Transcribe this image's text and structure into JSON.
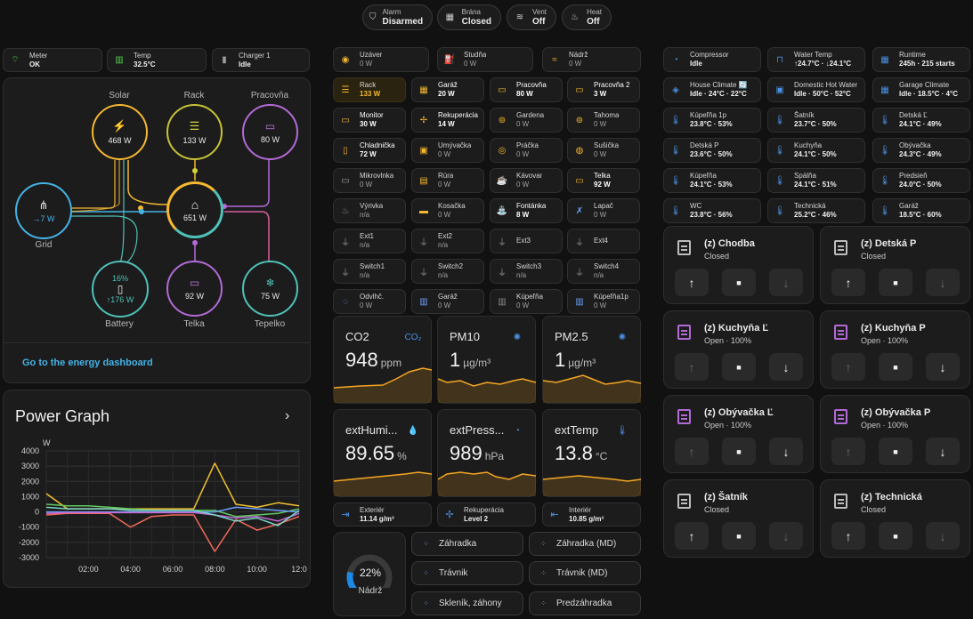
{
  "header_chips": [
    {
      "label": "Alarm",
      "value": "Disarmed",
      "icon": "shield-off-icon"
    },
    {
      "label": "Brána",
      "value": "Closed",
      "icon": "garage-icon"
    },
    {
      "label": "Vent",
      "value": "Off",
      "icon": "vent-icon"
    },
    {
      "label": "Heat",
      "value": "Off",
      "icon": "heat-icon"
    }
  ],
  "status_chips": [
    {
      "label": "Meter",
      "value": "OK",
      "icon": "wifi-icon"
    },
    {
      "label": "Temp",
      "value": "32.5°C",
      "icon": "meter-icon"
    },
    {
      "label": "Charger 1",
      "value": "Idle",
      "icon": "charger-icon"
    }
  ],
  "energy": {
    "solar": {
      "label": "Solar",
      "value": "468 W"
    },
    "rack": {
      "label": "Rack",
      "value": "133 W"
    },
    "pracovna": {
      "label": "Pracovňa",
      "value": "80 W"
    },
    "grid": {
      "label": "Grid",
      "value": "→7 W"
    },
    "home": {
      "value": "651 W"
    },
    "battery": {
      "label": "Battery",
      "percent": "16%",
      "value": "↑176 W"
    },
    "telka": {
      "label": "Telka",
      "value": "92 W"
    },
    "tepelko": {
      "label": "Tepelko",
      "value": "75 W"
    },
    "link": "Go to the energy dashboard"
  },
  "power_graph": {
    "title": "Power Graph",
    "ylabel": "W",
    "yticks": [
      "4000",
      "3000",
      "2000",
      "1000",
      "0",
      "-1000",
      "-2000",
      "-3000"
    ],
    "xticks": [
      "02:00",
      "04:00",
      "06:00",
      "08:00",
      "10:00",
      "12:0"
    ]
  },
  "chart_data": {
    "type": "line",
    "title": "Power Graph",
    "ylabel": "W",
    "xlabel": "",
    "ylim": [
      -3000,
      4000
    ],
    "x": [
      "00:00",
      "01:00",
      "02:00",
      "03:00",
      "04:00",
      "05:00",
      "06:00",
      "07:00",
      "08:00",
      "09:00",
      "10:00",
      "11:00",
      "12:00"
    ],
    "series": [
      {
        "name": "",
        "color": "#f2c230",
        "values": [
          1200,
          200,
          200,
          200,
          200,
          200,
          200,
          200,
          3200,
          500,
          300,
          600,
          400
        ]
      },
      {
        "name": "",
        "color": "#5fc95f",
        "values": [
          500,
          400,
          400,
          300,
          200,
          100,
          100,
          100,
          100,
          -300,
          -200,
          -100,
          200
        ]
      },
      {
        "name": "",
        "color": "#f06a5a",
        "values": [
          -200,
          -100,
          -100,
          -100,
          -1000,
          -300,
          -200,
          -200,
          -2600,
          -500,
          -1200,
          -800,
          -300
        ]
      },
      {
        "name": "",
        "color": "#6aa0ff",
        "values": [
          0,
          0,
          0,
          0,
          0,
          0,
          0,
          0,
          0,
          300,
          200,
          100,
          0
        ]
      },
      {
        "name": "",
        "color": "#c86ad6",
        "values": [
          -100,
          -50,
          -50,
          -50,
          -50,
          -50,
          -50,
          -50,
          -200,
          -400,
          -300,
          -600,
          -100
        ]
      },
      {
        "name": "",
        "color": "#7ad3c8",
        "values": [
          300,
          200,
          200,
          200,
          100,
          100,
          100,
          100,
          -200,
          -600,
          -400,
          -900,
          100
        ]
      }
    ]
  },
  "power_tiles": [
    {
      "name": "Uzáver",
      "value": "0 W",
      "icon": "valve-icon",
      "color": "#f5b830",
      "style": "normal"
    },
    {
      "name": "Studňa",
      "value": "0 W",
      "icon": "pump-icon",
      "color": "#f5b830",
      "style": "normal"
    },
    {
      "name": "Nádrž",
      "value": "0 W",
      "icon": "tank-icon",
      "color": "#f5b830",
      "style": "normal"
    },
    {
      "name": "Rack",
      "value": "133 W",
      "icon": "server-icon",
      "color": "#f5b830",
      "style": "on"
    },
    {
      "name": "Garáž",
      "value": "20 W",
      "icon": "garage-power-icon",
      "color": "#f5b830",
      "style": "b"
    },
    {
      "name": "Pracovňa",
      "value": "80 W",
      "icon": "laptop-icon",
      "color": "#f5b830",
      "style": "b"
    },
    {
      "name": "Pracovňa 2",
      "value": "3 W",
      "icon": "laptop-icon",
      "color": "#f5b830",
      "style": "b"
    },
    {
      "name": "Monitor",
      "value": "30 W",
      "icon": "monitor-icon",
      "color": "#f5b830",
      "style": "b"
    },
    {
      "name": "Rekuperácia",
      "value": "14 W",
      "icon": "fan-icon",
      "color": "#f5b830",
      "style": "b"
    },
    {
      "name": "Gardena",
      "value": "0 W",
      "icon": "antenna-icon",
      "color": "#f5b830",
      "style": "normal"
    },
    {
      "name": "Tahoma",
      "value": "0 W",
      "icon": "antenna-icon",
      "color": "#f5b830",
      "style": "normal"
    },
    {
      "name": "Chladnička",
      "value": "72 W",
      "icon": "fridge-icon",
      "color": "#f5b830",
      "style": "b"
    },
    {
      "name": "Umývačka",
      "value": "0 W",
      "icon": "dishwasher-icon",
      "color": "#f5b830",
      "style": "normal"
    },
    {
      "name": "Práčka",
      "value": "0 W",
      "icon": "washer-icon",
      "color": "#f5b830",
      "style": "normal"
    },
    {
      "name": "Sušička",
      "value": "0 W",
      "icon": "dryer-icon",
      "color": "#f5b830",
      "style": "normal"
    },
    {
      "name": "Mikrovlnka",
      "value": "0 W",
      "icon": "microwave-icon",
      "color": "#a0a0a0",
      "style": "normal"
    },
    {
      "name": "Rúra",
      "value": "0 W",
      "icon": "oven-icon",
      "color": "#f5b830",
      "style": "normal"
    },
    {
      "name": "Kávovar",
      "value": "0 W",
      "icon": "coffee-icon",
      "color": "#f5b830",
      "style": "normal"
    },
    {
      "name": "Telka",
      "value": "92 W",
      "icon": "tv-icon",
      "color": "#f5b830",
      "style": "b"
    },
    {
      "name": "Výrivka",
      "value": "n/a",
      "icon": "hot-tub-icon",
      "color": "#8a8a8a",
      "style": "na"
    },
    {
      "name": "Kosačka",
      "value": "0 W",
      "icon": "mower-icon",
      "color": "#f5b830",
      "style": "normal"
    },
    {
      "name": "Fontánka",
      "value": "8 W",
      "icon": "fountain-icon",
      "color": "#f5b830",
      "style": "b"
    },
    {
      "name": "Lapač",
      "value": "0 W",
      "icon": "bug-icon",
      "color": "#6aa0ff",
      "style": "normal"
    },
    {
      "name": "Ext1",
      "value": "n/a",
      "icon": "plug-icon",
      "color": "#8a8a8a",
      "style": "na"
    },
    {
      "name": "Ext2",
      "value": "n/a",
      "icon": "plug-icon",
      "color": "#8a8a8a",
      "style": "na"
    },
    {
      "name": "Ext3",
      "value": "",
      "icon": "plug-icon",
      "color": "#8a8a8a",
      "style": "na"
    },
    {
      "name": "Ext4",
      "value": "",
      "icon": "plug-icon",
      "color": "#8a8a8a",
      "style": "na"
    },
    {
      "name": "Switch1",
      "value": "n/a",
      "icon": "plug-icon",
      "color": "#8a8a8a",
      "style": "na"
    },
    {
      "name": "Switch2",
      "value": "n/a",
      "icon": "plug-icon",
      "color": "#8a8a8a",
      "style": "na"
    },
    {
      "name": "Switch3",
      "value": "n/a",
      "icon": "plug-icon",
      "color": "#8a8a8a",
      "style": "na"
    },
    {
      "name": "Switch4",
      "value": "n/a",
      "icon": "plug-icon",
      "color": "#8a8a8a",
      "style": "na"
    },
    {
      "name": "Odvlhč.",
      "value": "0 W",
      "icon": "dehumidifier-icon",
      "color": "#6aa0ff",
      "style": "normal"
    },
    {
      "name": "Garáž",
      "value": "0 W",
      "icon": "radiator-icon",
      "color": "#6aa0ff",
      "style": "normal"
    },
    {
      "name": "Kúpeľňa",
      "value": "0 W",
      "icon": "radiator-icon",
      "color": "#8a8a8a",
      "style": "normal"
    },
    {
      "name": "Kúpeľňa1p",
      "value": "0 W",
      "icon": "radiator-icon",
      "color": "#6aa0ff",
      "style": "normal"
    }
  ],
  "sensors": [
    {
      "name": "CO2",
      "value": "948",
      "unit": "ppm",
      "icon": "co2-icon"
    },
    {
      "name": "PM10",
      "value": "1",
      "unit": "µg/m³",
      "icon": "virus-icon"
    },
    {
      "name": "PM2.5",
      "value": "1",
      "unit": "µg/m³",
      "icon": "virus-icon"
    },
    {
      "name": "extHumi...",
      "value": "89.65",
      "unit": "%",
      "icon": "water-drop-icon"
    },
    {
      "name": "extPress...",
      "value": "989",
      "unit": "hPa",
      "icon": "gauge-icon"
    },
    {
      "name": "extTemp",
      "value": "13.8",
      "unit": "°C",
      "icon": "thermometer-icon"
    }
  ],
  "vent_tiles": [
    {
      "name": "Exteriér",
      "value": "11.14 g/m³",
      "icon": "exit-icon"
    },
    {
      "name": "Rekuperácia",
      "value": "Level 2",
      "icon": "fan-icon"
    },
    {
      "name": "Interiér",
      "value": "10.85 g/m³",
      "icon": "enter-icon"
    }
  ],
  "tank": {
    "percent": "22%",
    "fill": 0.22,
    "label": "Nádrž"
  },
  "sprinklers": [
    "Záhradka",
    "Záhradka (MD)",
    "Trávnik",
    "Trávnik (MD)",
    "Skleník, záhony",
    "Predzáhradka"
  ],
  "climate_tiles": [
    {
      "name": "Compressor",
      "value": "Idle",
      "icon": "gauge-icon"
    },
    {
      "name": "Water Temp",
      "value": "↑24.7°C · ↓24.1°C",
      "icon": "pipe-icon"
    },
    {
      "name": "Runtime",
      "value": "245h · 215 starts",
      "icon": "counter-icon"
    },
    {
      "name": "House Climate 🔄",
      "value": "Idle · 24°C · 22°C",
      "icon": "thermostat-icon"
    },
    {
      "name": "Domestic Hot Water",
      "value": "Idle · 50°C · 52°C",
      "icon": "boiler-icon"
    },
    {
      "name": "Garage Climate",
      "value": "Idle · 18.5°C · 4°C",
      "icon": "garage-climate-icon"
    },
    {
      "name": "Kúpeľňa 1p",
      "value": "23.8°C · 53%",
      "icon": "thermometer-icon"
    },
    {
      "name": "Šatník",
      "value": "23.7°C · 50%",
      "icon": "thermometer-icon"
    },
    {
      "name": "Detská Ľ",
      "value": "24.1°C · 49%",
      "icon": "thermometer-icon"
    },
    {
      "name": "Detská P",
      "value": "23.6°C · 50%",
      "icon": "thermometer-icon"
    },
    {
      "name": "Kuchyňa",
      "value": "24.1°C · 50%",
      "icon": "thermometer-icon"
    },
    {
      "name": "Obývačka",
      "value": "24.3°C · 49%",
      "icon": "thermometer-icon"
    },
    {
      "name": "Kúpeľňa",
      "value": "24.1°C · 53%",
      "icon": "thermometer-icon"
    },
    {
      "name": "Spálňa",
      "value": "24.1°C · 51%",
      "icon": "thermometer-icon"
    },
    {
      "name": "Predsieň",
      "value": "24.0°C · 50%",
      "icon": "thermometer-icon"
    },
    {
      "name": "WC",
      "value": "23.8°C · 56%",
      "icon": "thermometer-icon"
    },
    {
      "name": "Technická",
      "value": "25.2°C · 46%",
      "icon": "thermometer-icon"
    },
    {
      "name": "Garáž",
      "value": "18.5°C · 60%",
      "icon": "thermometer-icon"
    }
  ],
  "covers": [
    {
      "name": "(z) Chodba",
      "state": "Closed",
      "open": false
    },
    {
      "name": "(z) Detská P",
      "state": "Closed",
      "open": false
    },
    {
      "name": "(z) Kuchyňa Ľ",
      "state": "Open · 100%",
      "open": true
    },
    {
      "name": "(z) Kuchyňa P",
      "state": "Open · 100%",
      "open": true
    },
    {
      "name": "(z) Obývačka Ľ",
      "state": "Open · 100%",
      "open": true
    },
    {
      "name": "(z) Obývačka P",
      "state": "Open · 100%",
      "open": true
    },
    {
      "name": "(z) Šatník",
      "state": "Closed",
      "open": false
    },
    {
      "name": "(z) Technická",
      "state": "Closed",
      "open": false
    }
  ],
  "colors": {
    "accent": "#f5b830",
    "blue": "#6aa0ff",
    "cyan": "#44b3e6",
    "purple": "#b36ad6",
    "teal": "#4fc1b8",
    "pink": "#d65fa0"
  }
}
